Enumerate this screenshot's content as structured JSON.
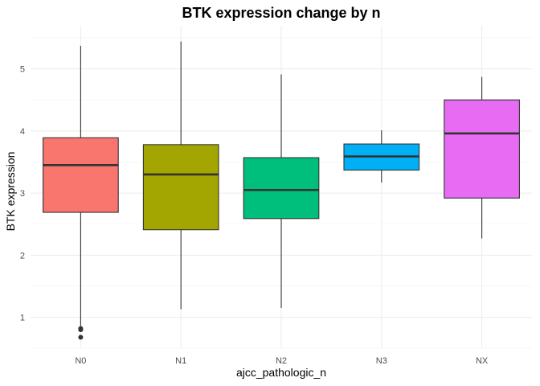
{
  "chart_data": {
    "type": "boxplot",
    "title": "BTK expression change by n",
    "xlabel": "ajcc_pathologic_n",
    "ylabel": "BTK expression",
    "ylim": [
      0.5,
      5.6
    ],
    "yticks": [
      1,
      2,
      3,
      4,
      5
    ],
    "grid": true,
    "legend": "none",
    "categories": [
      "N0",
      "N1",
      "N2",
      "N3",
      "NX"
    ],
    "boxes": [
      {
        "category": "N0",
        "color": "#F8766D",
        "whisker_low": 0.86,
        "q1": 2.69,
        "median": 3.45,
        "q3": 3.89,
        "whisker_high": 5.37,
        "outliers": [
          0.82,
          0.8,
          0.68
        ]
      },
      {
        "category": "N1",
        "color": "#A3A500",
        "whisker_low": 1.13,
        "q1": 2.41,
        "median": 3.3,
        "q3": 3.78,
        "whisker_high": 5.44,
        "outliers": []
      },
      {
        "category": "N2",
        "color": "#00BF7D",
        "whisker_low": 1.15,
        "q1": 2.59,
        "median": 3.05,
        "q3": 3.57,
        "whisker_high": 4.91,
        "outliers": []
      },
      {
        "category": "N3",
        "color": "#00B0F6",
        "whisker_low": 3.17,
        "q1": 3.37,
        "median": 3.59,
        "q3": 3.79,
        "whisker_high": 4.01,
        "outliers": []
      },
      {
        "category": "NX",
        "color": "#E76BF3",
        "whisker_low": 2.27,
        "q1": 2.92,
        "median": 3.96,
        "q3": 4.5,
        "whisker_high": 4.87,
        "outliers": []
      }
    ]
  }
}
